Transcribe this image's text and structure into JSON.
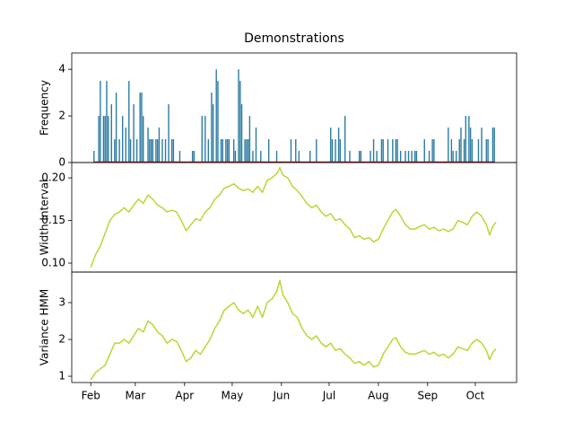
{
  "chart_data": [
    {
      "type": "bar",
      "title": "Demonstrations",
      "ylabel": "Frequency",
      "x": [
        2,
        5,
        6,
        8,
        9,
        10,
        11,
        13,
        15,
        16,
        18,
        20,
        22,
        24,
        25,
        27,
        29,
        31,
        32,
        33,
        36,
        37,
        38,
        39,
        41,
        42,
        43,
        45,
        47,
        49,
        51,
        52,
        56,
        64,
        65,
        70,
        72,
        74,
        76,
        77,
        79,
        80,
        82,
        83,
        85,
        86,
        87,
        90,
        91,
        93,
        94,
        95,
        97,
        98,
        99,
        100,
        102,
        104,
        107,
        112,
        117,
        126,
        129,
        131,
        138,
        142,
        151,
        152,
        154,
        156,
        157,
        160,
        163,
        169,
        170,
        176,
        178,
        180,
        183,
        184,
        187,
        190,
        192,
        193,
        195,
        198,
        200,
        202,
        204,
        205,
        210,
        213,
        215,
        216,
        225,
        227,
        228,
        230,
        232,
        233,
        235,
        236,
        238,
        239,
        240,
        244,
        246,
        249,
        250,
        253,
        254
      ],
      "values": [
        0.5,
        2,
        3.5,
        2,
        2,
        3.5,
        2,
        2.5,
        1,
        3,
        1,
        2,
        1.5,
        3.5,
        1,
        2.5,
        1,
        3,
        3,
        2,
        1.5,
        1,
        1,
        1,
        1,
        1,
        1.5,
        1,
        1,
        2.5,
        1,
        1,
        0.5,
        0.5,
        0.5,
        2,
        2,
        1,
        3,
        2.5,
        4,
        3.5,
        1,
        1,
        1,
        1,
        1,
        1,
        0.5,
        4,
        3.5,
        2.5,
        1,
        1,
        1,
        2,
        0.5,
        1.5,
        0.5,
        1,
        0.5,
        1,
        1,
        0.5,
        0.5,
        1,
        1.5,
        1,
        1,
        1.5,
        1,
        2,
        0.5,
        0.5,
        0.5,
        0.5,
        1,
        0.5,
        1,
        1,
        1,
        1,
        1,
        1,
        0.5,
        0.5,
        0.5,
        0.5,
        0.5,
        0.5,
        1,
        0.5,
        1,
        1,
        1.5,
        1,
        0.5,
        0.5,
        1,
        1.5,
        1,
        2,
        2,
        1.5,
        1,
        1,
        1.5,
        1,
        1,
        1.5,
        1.5
      ],
      "color": "#2b7ba3",
      "baseline_color": "#b0201c",
      "xlim": [
        -12,
        268
      ],
      "ylim": [
        0,
        4.7
      ],
      "yticks": [
        0,
        2,
        4
      ]
    },
    {
      "type": "line",
      "ylabel": "Width Interval",
      "x": [
        0,
        3,
        6,
        9,
        12,
        15,
        18,
        21,
        24,
        27,
        30,
        33,
        36,
        39,
        42,
        45,
        48,
        51,
        54,
        57,
        60,
        63,
        66,
        69,
        72,
        75,
        78,
        81,
        84,
        87,
        90,
        93,
        96,
        99,
        102,
        105,
        108,
        111,
        114,
        117,
        119,
        121,
        124,
        127,
        130,
        133,
        136,
        139,
        142,
        145,
        148,
        151,
        154,
        157,
        160,
        163,
        166,
        169,
        172,
        175,
        178,
        181,
        184,
        187,
        190,
        192,
        195,
        198,
        201,
        204,
        207,
        210,
        213,
        216,
        219,
        222,
        225,
        228,
        231,
        234,
        237,
        240,
        243,
        246,
        249,
        251,
        253,
        255
      ],
      "values": [
        0.095,
        0.11,
        0.12,
        0.135,
        0.15,
        0.157,
        0.16,
        0.165,
        0.16,
        0.168,
        0.175,
        0.17,
        0.18,
        0.175,
        0.168,
        0.165,
        0.16,
        0.162,
        0.16,
        0.15,
        0.138,
        0.145,
        0.152,
        0.15,
        0.16,
        0.165,
        0.175,
        0.18,
        0.188,
        0.19,
        0.193,
        0.188,
        0.185,
        0.187,
        0.183,
        0.19,
        0.183,
        0.197,
        0.2,
        0.205,
        0.212,
        0.203,
        0.2,
        0.19,
        0.185,
        0.178,
        0.17,
        0.165,
        0.168,
        0.16,
        0.155,
        0.158,
        0.15,
        0.152,
        0.145,
        0.14,
        0.13,
        0.132,
        0.128,
        0.13,
        0.125,
        0.128,
        0.14,
        0.15,
        0.16,
        0.163,
        0.155,
        0.145,
        0.14,
        0.14,
        0.143,
        0.145,
        0.14,
        0.142,
        0.138,
        0.14,
        0.137,
        0.14,
        0.15,
        0.148,
        0.145,
        0.155,
        0.16,
        0.155,
        0.145,
        0.133,
        0.143,
        0.148
      ],
      "color": "#bcd533",
      "xlim": [
        -12,
        268
      ],
      "ylim": [
        0.0895,
        0.218
      ],
      "yticks": [
        {
          "value": 0.1,
          "label": "0.10"
        },
        {
          "value": 0.15,
          "label": "0.15"
        },
        {
          "value": 0.2,
          "label": "0.20"
        }
      ]
    },
    {
      "type": "line",
      "ylabel": "Variance HMM",
      "x": [
        0,
        3,
        6,
        9,
        12,
        15,
        18,
        21,
        24,
        27,
        30,
        33,
        36,
        39,
        42,
        45,
        48,
        51,
        54,
        57,
        60,
        63,
        66,
        69,
        72,
        75,
        78,
        81,
        84,
        87,
        90,
        93,
        96,
        99,
        102,
        105,
        108,
        111,
        114,
        117,
        119,
        121,
        124,
        127,
        130,
        133,
        136,
        139,
        142,
        145,
        148,
        151,
        154,
        157,
        160,
        163,
        166,
        169,
        172,
        175,
        178,
        181,
        184,
        187,
        190,
        192,
        195,
        198,
        201,
        204,
        207,
        210,
        213,
        216,
        219,
        222,
        225,
        228,
        231,
        234,
        237,
        240,
        243,
        246,
        249,
        251,
        253,
        255
      ],
      "values": [
        0.9,
        1.1,
        1.2,
        1.3,
        1.6,
        1.9,
        1.9,
        2.0,
        1.9,
        2.1,
        2.3,
        2.2,
        2.5,
        2.4,
        2.2,
        2.1,
        1.9,
        2.0,
        1.95,
        1.7,
        1.4,
        1.5,
        1.7,
        1.6,
        1.8,
        2.0,
        2.3,
        2.5,
        2.8,
        2.9,
        3.0,
        2.8,
        2.7,
        2.8,
        2.6,
        2.9,
        2.6,
        3.0,
        3.1,
        3.3,
        3.6,
        3.2,
        3.0,
        2.7,
        2.6,
        2.3,
        2.1,
        2.0,
        2.1,
        1.9,
        1.8,
        1.9,
        1.7,
        1.75,
        1.6,
        1.5,
        1.35,
        1.4,
        1.3,
        1.4,
        1.25,
        1.3,
        1.6,
        1.8,
        2.0,
        2.05,
        1.8,
        1.65,
        1.6,
        1.6,
        1.65,
        1.7,
        1.6,
        1.65,
        1.55,
        1.6,
        1.5,
        1.6,
        1.8,
        1.75,
        1.7,
        1.9,
        2.0,
        1.9,
        1.7,
        1.45,
        1.65,
        1.75
      ],
      "color": "#bcd533",
      "xlim": [
        -12,
        268
      ],
      "ylim": [
        0.83,
        3.83
      ],
      "yticks": [
        1,
        2,
        3
      ],
      "xticks": [
        {
          "value": 0,
          "label": "Feb"
        },
        {
          "value": 28,
          "label": "Mar"
        },
        {
          "value": 59,
          "label": "Apr"
        },
        {
          "value": 89,
          "label": "May"
        },
        {
          "value": 120,
          "label": "Jun"
        },
        {
          "value": 150,
          "label": "Jul"
        },
        {
          "value": 181,
          "label": "Aug"
        },
        {
          "value": 212,
          "label": "Sep"
        },
        {
          "value": 242,
          "label": "Oct"
        }
      ]
    }
  ]
}
